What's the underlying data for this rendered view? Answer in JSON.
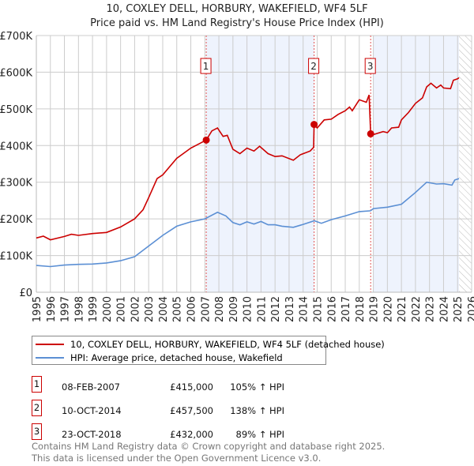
{
  "chart_data": {
    "type": "line",
    "title": "10, COXLEY DELL, HORBURY, WAKEFIELD, WF4 5LF",
    "subtitle": "Price paid vs. HM Land Registry's House Price Index (HPI)",
    "xlim": [
      1995,
      2026
    ],
    "ylim": [
      0,
      700000
    ],
    "x_ticks": [
      "1995",
      "1996",
      "1997",
      "1998",
      "1999",
      "2000",
      "2001",
      "2002",
      "2003",
      "2004",
      "2005",
      "2006",
      "2007",
      "2008",
      "2009",
      "2010",
      "2011",
      "2012",
      "2013",
      "2014",
      "2015",
      "2016",
      "2017",
      "2018",
      "2019",
      "2020",
      "2021",
      "2022",
      "2023",
      "2024",
      "2025",
      "2026"
    ],
    "y_ticks": [
      {
        "v": 0,
        "label": "£0"
      },
      {
        "v": 100000,
        "label": "£100K"
      },
      {
        "v": 200000,
        "label": "£200K"
      },
      {
        "v": 300000,
        "label": "£300K"
      },
      {
        "v": 400000,
        "label": "£400K"
      },
      {
        "v": 500000,
        "label": "£500K"
      },
      {
        "v": 600000,
        "label": "£600K"
      },
      {
        "v": 700000,
        "label": "£700K"
      }
    ],
    "grid": true,
    "series": [
      {
        "name": "10, COXLEY DELL, HORBURY, WAKEFIELD, WF4 5LF (detached house)",
        "color": "#cc0000",
        "x": [
          1995,
          1995.5,
          1996,
          1997,
          1997.5,
          1998,
          1999,
          2000,
          2001,
          2002,
          2002.6,
          2003,
          2003.6,
          2004,
          2005,
          2006,
          2007.1,
          2007.5,
          2007.9,
          2008.3,
          2008.6,
          2009,
          2009.5,
          2010,
          2010.5,
          2010.9,
          2011.5,
          2012,
          2012.5,
          2013.3,
          2013.8,
          2014.5,
          2014.75,
          2014.78,
          2015,
          2015.5,
          2016,
          2016.5,
          2017,
          2017.3,
          2017.5,
          2018,
          2018.5,
          2018.7,
          2018.81,
          2019,
          2019.7,
          2020,
          2020.3,
          2020.8,
          2021,
          2021.5,
          2022,
          2022.5,
          2022.8,
          2023.1,
          2023.5,
          2023.8,
          2024,
          2024.5,
          2024.7,
          2025,
          2025.1
        ],
        "y": [
          148000,
          153000,
          143000,
          152000,
          158000,
          155000,
          160000,
          163000,
          178000,
          200000,
          225000,
          258000,
          310000,
          320000,
          365000,
          393000,
          415000,
          440000,
          448000,
          425000,
          428000,
          390000,
          378000,
          393000,
          385000,
          398000,
          378000,
          370000,
          372000,
          360000,
          375000,
          385000,
          395000,
          457500,
          448000,
          470000,
          472000,
          485000,
          495000,
          505000,
          495000,
          525000,
          518000,
          538000,
          432000,
          430000,
          438000,
          435000,
          448000,
          450000,
          470000,
          490000,
          515000,
          530000,
          560000,
          570000,
          557000,
          565000,
          557000,
          555000,
          578000,
          582000,
          585000
        ]
      },
      {
        "name": "HPI: Average price, detached house, Wakefield",
        "color": "#5b8fd4",
        "x": [
          1995,
          1996,
          1997,
          1998,
          1999,
          2000,
          2001,
          2002,
          2003,
          2004,
          2005,
          2006,
          2007,
          2007.9,
          2008.5,
          2009,
          2009.5,
          2010,
          2010.5,
          2011,
          2011.5,
          2012,
          2012.5,
          2013.3,
          2014,
          2014.8,
          2015.3,
          2016,
          2017,
          2018,
          2018.8,
          2019,
          2020,
          2021,
          2022,
          2022.8,
          2023.5,
          2024,
          2024.6,
          2024.8,
          2025.1
        ],
        "y": [
          73000,
          70000,
          74000,
          76000,
          77000,
          80000,
          86000,
          97000,
          126000,
          155000,
          180000,
          192000,
          200000,
          218000,
          208000,
          190000,
          184000,
          192000,
          186000,
          193000,
          184000,
          184000,
          180000,
          177000,
          185000,
          195000,
          188000,
          198000,
          208000,
          220000,
          222000,
          228000,
          232000,
          240000,
          272000,
          300000,
          295000,
          296000,
          292000,
          306000,
          310000
        ]
      }
    ],
    "sales": [
      {
        "n": "1",
        "x": 2007.1,
        "date": "08-FEB-2007",
        "price_value": 415000,
        "price": "£415,000",
        "hpi": "105% ↑ HPI"
      },
      {
        "n": "2",
        "x": 2014.78,
        "date": "10-OCT-2014",
        "price_value": 457500,
        "price": "£457,500",
        "hpi": "138% ↑ HPI"
      },
      {
        "n": "3",
        "x": 2018.81,
        "date": "23-OCT-2018",
        "price_value": 432000,
        "price": "£432,000",
        "hpi": "89% ↑ HPI"
      }
    ],
    "shaded_ranges": [
      [
        2007.1,
        2014.78
      ],
      [
        2019.0,
        2025.1
      ]
    ],
    "forecast_hatch_from": 2025.1
  },
  "footer": {
    "line1": "Contains HM Land Registry data © Crown copyright and database right 2025.",
    "line2": "This data is licensed under the Open Government Licence v3.0."
  }
}
